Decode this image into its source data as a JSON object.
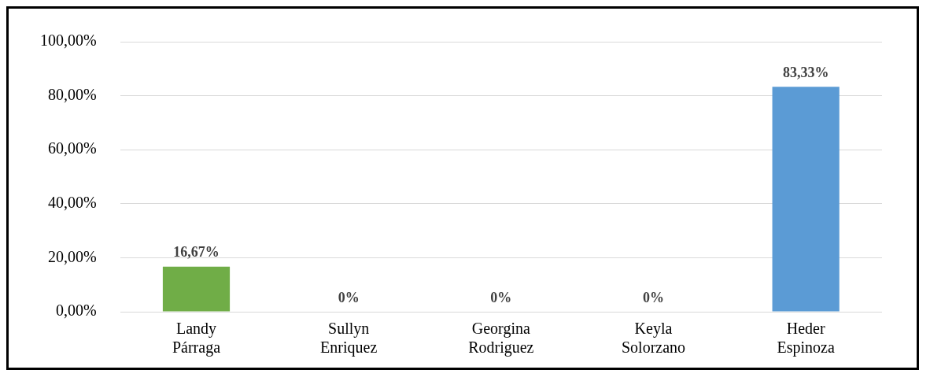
{
  "chart_data": {
    "type": "bar",
    "categories": [
      "Landy Párraga",
      "Sullyn Enriquez",
      "Georgina Rodriguez",
      "Keyla Solorzano",
      "Heder Espinoza"
    ],
    "values": [
      16.67,
      0,
      0,
      0,
      83.33
    ],
    "colors": [
      "#70ad47",
      "#c55a11",
      "#203864",
      "#c9a089",
      "#5b9bd5"
    ],
    "value_labels": [
      "16,67%",
      "0%",
      "0%",
      "0%",
      "83,33%"
    ],
    "ylim": [
      0,
      100
    ],
    "yticks": [
      {
        "value": 0,
        "label": "0,00%"
      },
      {
        "value": 20,
        "label": "20,00%"
      },
      {
        "value": 40,
        "label": "40,00%"
      },
      {
        "value": 60,
        "label": "60,00%"
      },
      {
        "value": 80,
        "label": "80,00%"
      },
      {
        "value": 100,
        "label": "100,00%"
      }
    ],
    "grid": "y",
    "legend": false
  }
}
